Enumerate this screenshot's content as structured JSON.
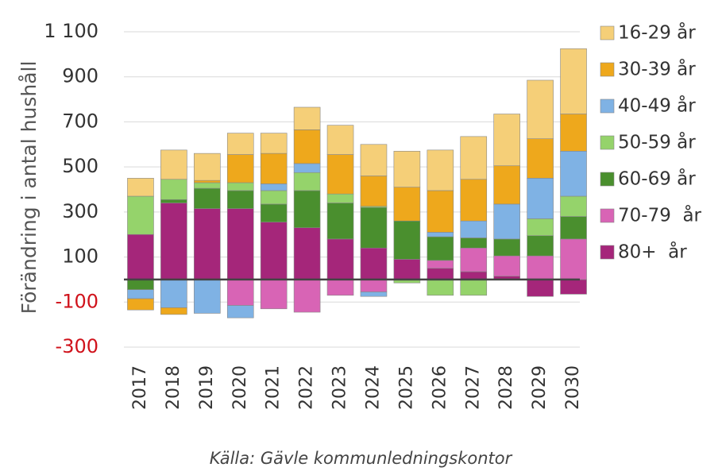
{
  "chart_data": {
    "type": "stacked-bar",
    "y_label": "Förändring i antal hushåll",
    "source": "Källa: Gävle kommunledningskontor",
    "categories": [
      "2017",
      "2018",
      "2019",
      "2020",
      "2021",
      "2022",
      "2023",
      "2024",
      "2025",
      "2026",
      "2027",
      "2028",
      "2029",
      "2030"
    ],
    "series": [
      {
        "name": "80+  år",
        "color": "#a5267a",
        "values": [
          200,
          340,
          315,
          315,
          255,
          230,
          180,
          140,
          90,
          50,
          35,
          15,
          -75,
          -65
        ]
      },
      {
        "name": "70-79  år",
        "color": "#d864b5",
        "values": [
          0,
          0,
          0,
          -115,
          -130,
          -145,
          -70,
          -55,
          0,
          35,
          105,
          90,
          105,
          180
        ]
      },
      {
        "name": "60-69 år",
        "color": "#4a8f2e",
        "values": [
          -45,
          15,
          90,
          80,
          80,
          165,
          160,
          180,
          170,
          105,
          45,
          75,
          90,
          100
        ]
      },
      {
        "name": "50-59 år",
        "color": "#95d36b",
        "values": [
          170,
          90,
          25,
          35,
          60,
          80,
          40,
          5,
          -15,
          -70,
          -70,
          0,
          75,
          90
        ]
      },
      {
        "name": "40-49 år",
        "color": "#7fb2e4",
        "values": [
          -40,
          -125,
          -150,
          -55,
          30,
          40,
          0,
          -20,
          0,
          20,
          75,
          155,
          180,
          200
        ]
      },
      {
        "name": "30-39 år",
        "color": "#eea81c",
        "values": [
          -50,
          -30,
          10,
          125,
          135,
          150,
          175,
          135,
          150,
          185,
          185,
          170,
          175,
          165
        ]
      },
      {
        "name": "16-29 år",
        "color": "#f5cf78",
        "values": [
          80,
          130,
          120,
          95,
          90,
          100,
          130,
          140,
          160,
          180,
          190,
          230,
          260,
          290
        ]
      }
    ],
    "ylim": [
      -300,
      1100
    ],
    "yticks": [
      {
        "value": 1100,
        "label": "1 100"
      },
      900,
      700,
      500,
      300,
      100,
      -100,
      -300
    ],
    "negative_tick_color": "#d0121b",
    "grid": true,
    "legend": "right"
  }
}
